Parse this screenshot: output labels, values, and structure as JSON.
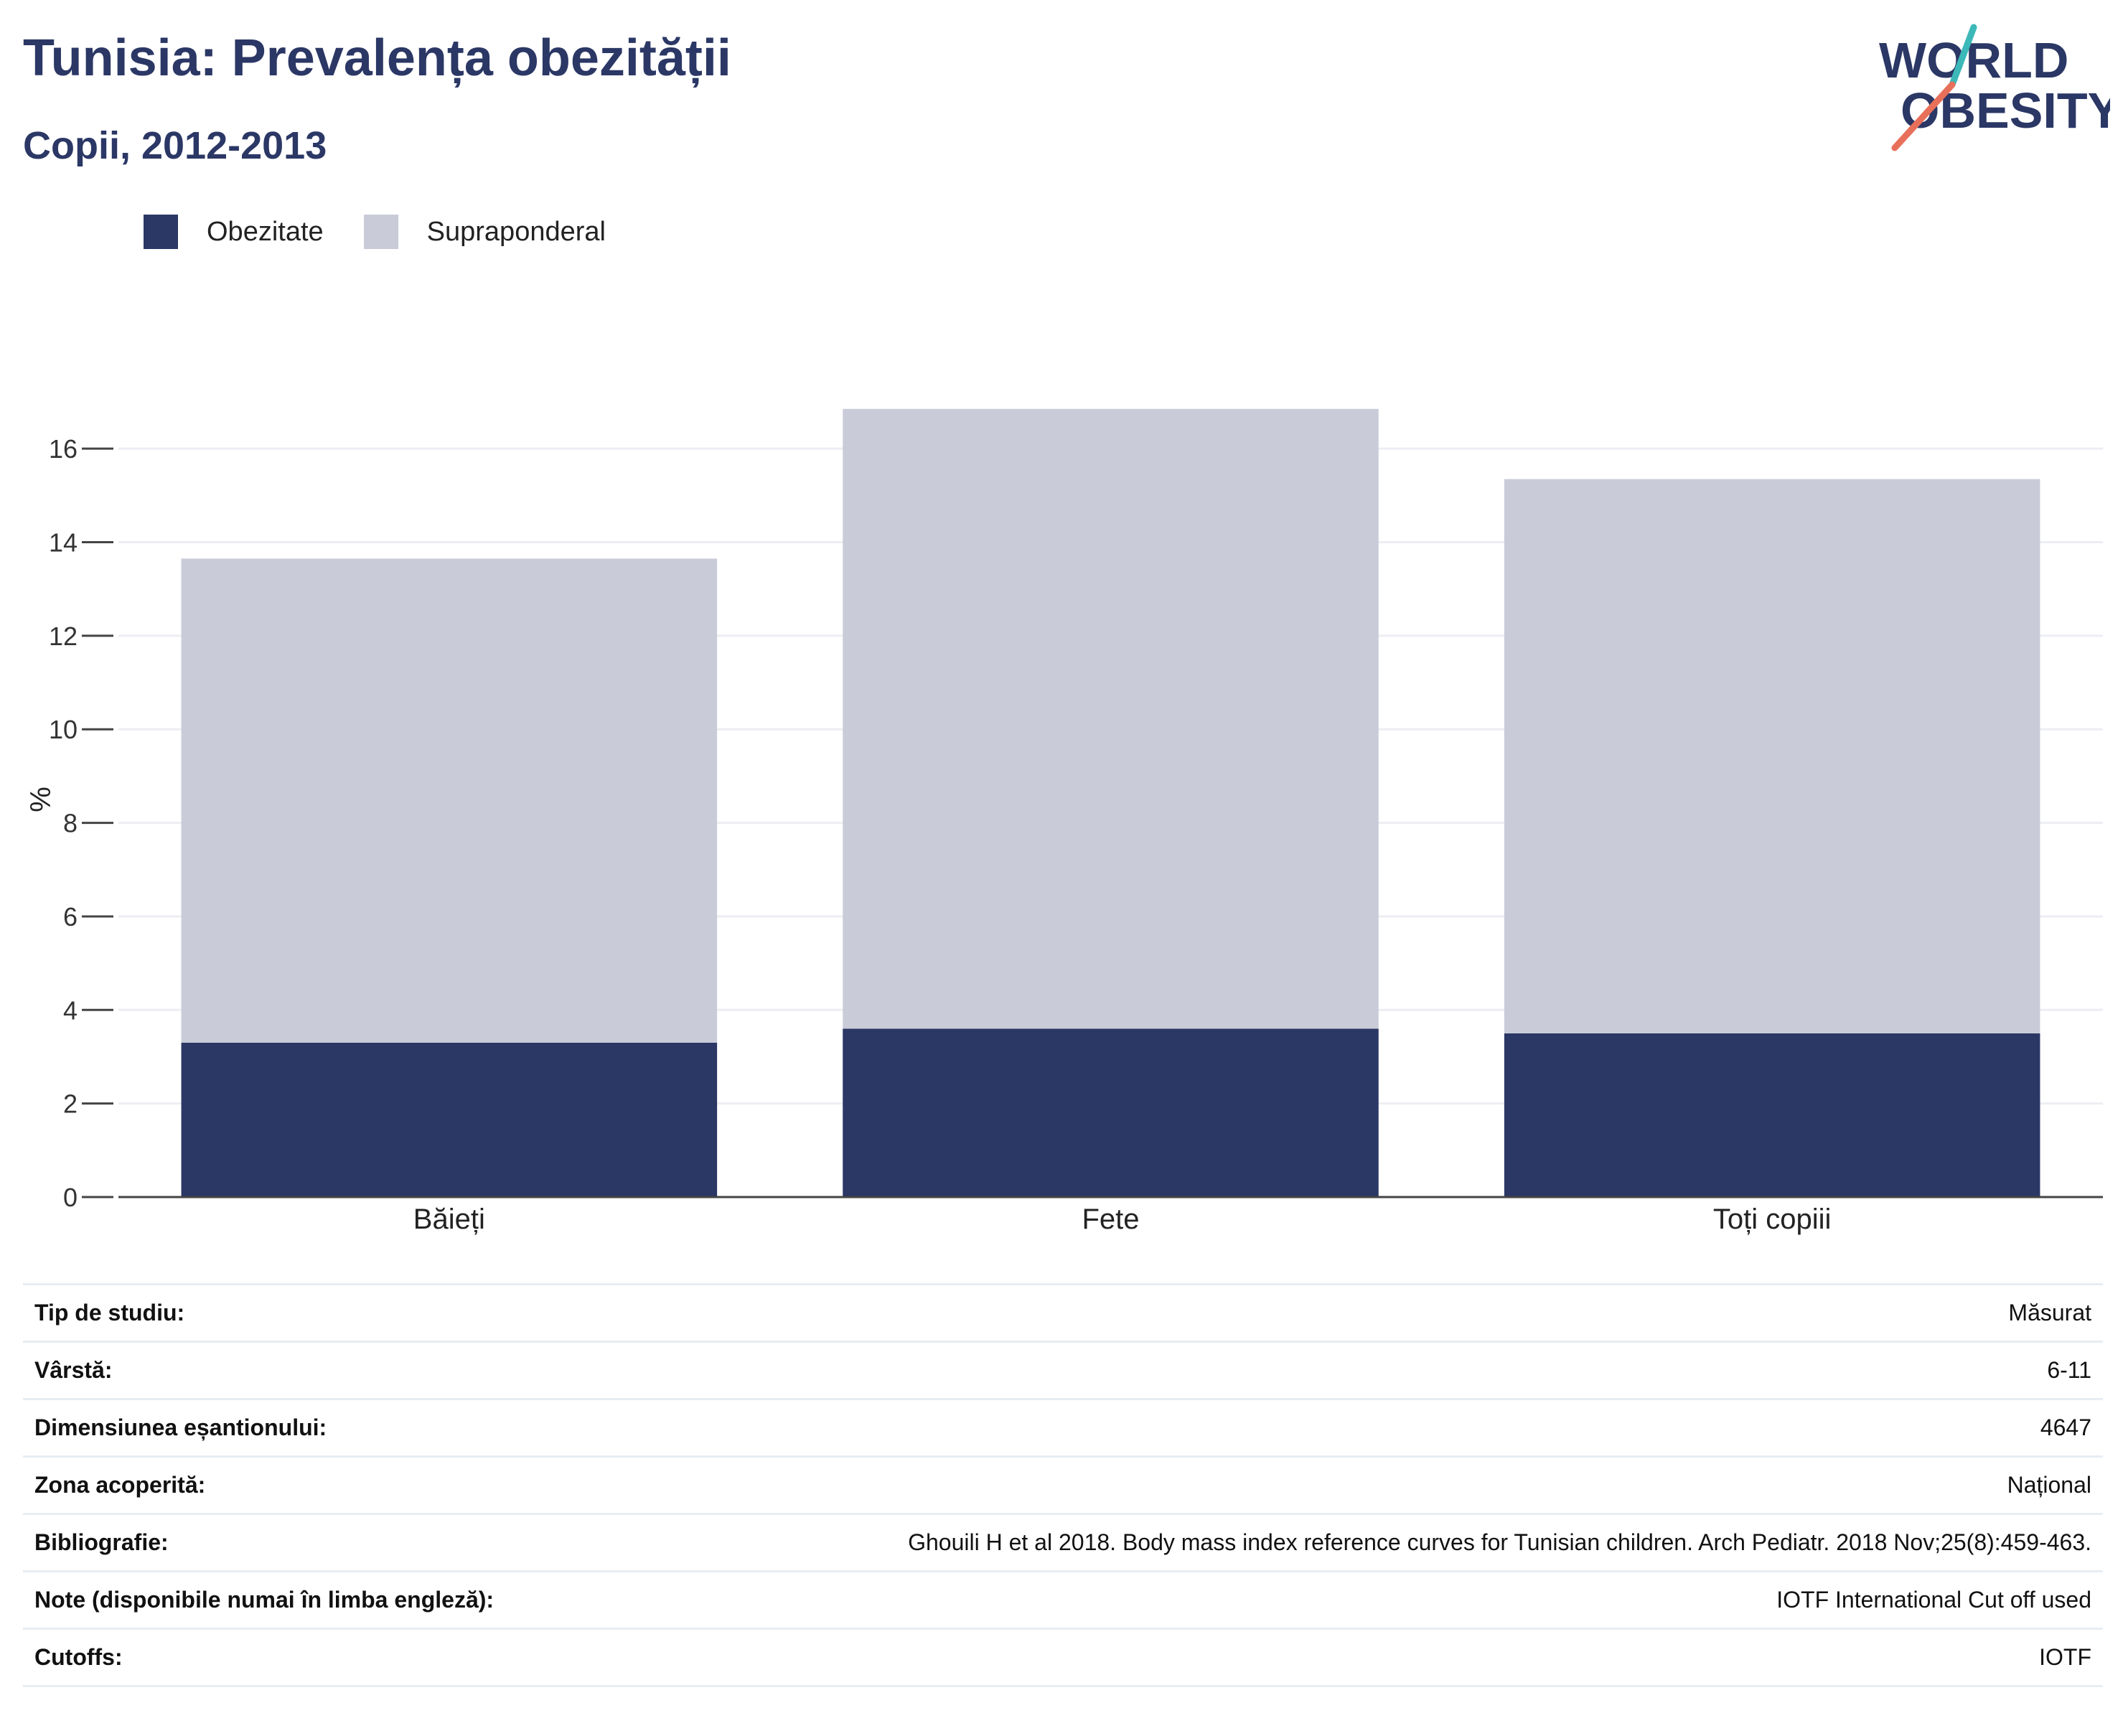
{
  "header": {
    "title": "Tunisia: Prevalența obezității",
    "subtitle": "Copii, 2012-2013"
  },
  "logo": {
    "line1": "WORLD",
    "line2": "OBESITY"
  },
  "colors": {
    "obezitate": "#2b3765",
    "supraponderal": "#c9ccd8",
    "accent_teal": "#3cb8b8",
    "accent_red": "#e8705a"
  },
  "chart_data": {
    "type": "bar",
    "stacked": true,
    "categories": [
      "Băieți",
      "Fete",
      "Toți copiii"
    ],
    "series": [
      {
        "name": "Obezitate",
        "values": [
          3.3,
          3.6,
          3.5
        ]
      },
      {
        "name": "Supraponderal",
        "values": [
          10.35,
          13.25,
          11.85
        ]
      }
    ],
    "ylabel": "%",
    "ylim": [
      0,
      17
    ],
    "yticks": [
      0,
      2,
      4,
      6,
      8,
      10,
      12,
      14,
      16
    ],
    "grid": true,
    "legend_position": "top-left"
  },
  "info": [
    {
      "label": "Tip de studiu:",
      "value": "Măsurat"
    },
    {
      "label": "Vârstă:",
      "value": "6-11"
    },
    {
      "label": "Dimensiunea eșantionului:",
      "value": "4647"
    },
    {
      "label": "Zona acoperită:",
      "value": "Național"
    },
    {
      "label": "Bibliografie:",
      "value": "Ghouili H et al 2018. Body mass index reference curves for Tunisian children. Arch Pediatr. 2018 Nov;25(8):459-463."
    },
    {
      "label": "Note (disponibile numai în limba engleză):",
      "value": "IOTF International Cut off used"
    },
    {
      "label": "Cutoffs:",
      "value": "IOTF"
    }
  ]
}
